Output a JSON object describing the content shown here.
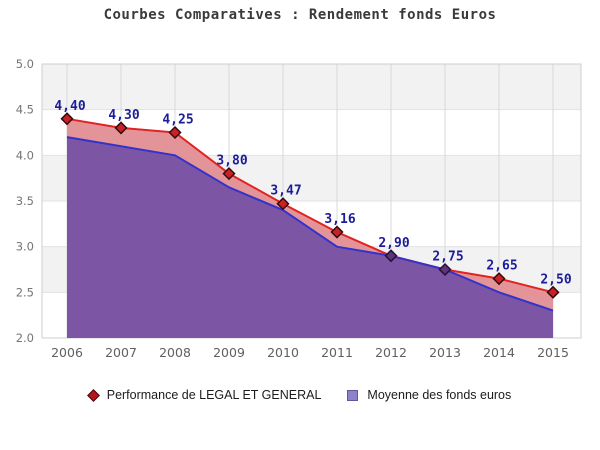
{
  "title": "Courbes Comparatives : Rendement fonds Euros",
  "y_axis": {
    "tick_labels": [
      "5.0",
      "4.5",
      "4.0",
      "3.5",
      "3.0",
      "2.5",
      "2.0"
    ]
  },
  "x_axis": {
    "tick_labels": [
      "2006",
      "2007",
      "2008",
      "2009",
      "2010",
      "2011",
      "2012",
      "2013",
      "2014",
      "2015"
    ]
  },
  "legend": {
    "items": [
      {
        "label": "Performance de LEGAL ET GENERAL",
        "marker": "diamond-icon",
        "color": "#b3161d",
        "border": "#40070b"
      },
      {
        "label": "Moyenne des fonds euros",
        "marker": "square-icon",
        "color": "#8d81c9",
        "border": "#5a5a99"
      }
    ]
  },
  "chart_data": {
    "type": "area",
    "title": "Courbes Comparatives : Rendement fonds Euros",
    "x": [
      2006,
      2007,
      2008,
      2009,
      2010,
      2011,
      2012,
      2013,
      2014,
      2015
    ],
    "series": [
      {
        "name": "Performance de LEGAL ET GENERAL",
        "values": [
          4.4,
          4.3,
          4.25,
          3.8,
          3.47,
          3.16,
          2.9,
          2.75,
          2.65,
          2.5
        ],
        "point_labels": [
          "4,40",
          "4,30",
          "4,25",
          "3,80",
          "3,47",
          "3,16",
          "2,90",
          "2,75",
          "2,65",
          "2,50"
        ],
        "line_color": "#e32222",
        "fill_color": "#e29498",
        "marker": "diamond"
      },
      {
        "name": "Moyenne des fonds euros",
        "values": [
          4.2,
          4.1,
          4.0,
          3.65,
          3.4,
          3.0,
          2.9,
          2.75,
          2.5,
          2.3
        ],
        "point_labels": [],
        "line_color": "#3232cd",
        "fill_color": "#7c55a4",
        "marker": "none"
      }
    ],
    "ylim": [
      2.0,
      5.0
    ],
    "ytick_step": 0.5,
    "grid": true,
    "band_colors": [
      "#f2f2f2",
      "#ffffff"
    ],
    "legend_position": "bottom"
  },
  "colors": {
    "point_label": "#1c1c9a",
    "marker_fill": "#cb2026",
    "marker_covered_fill": "#5c3677",
    "marker_stroke": "#330b0e",
    "marker_covered_stroke": "#251038",
    "h_grid": "#e2e2e2",
    "v_grid": "#d8d8d8",
    "plot_border": "#cfcfcf"
  }
}
